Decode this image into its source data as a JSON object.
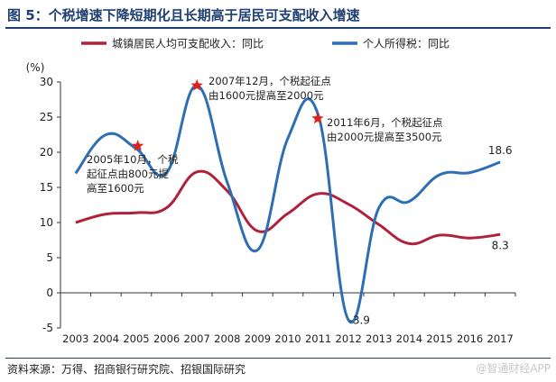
{
  "figure": {
    "title": "图 5：个税增速下降短期化且长期高于居民可支配收入增速",
    "source": "资料来源：万得、招商银行研究院、招银国际研究",
    "watermark": "@智通财经APP"
  },
  "colors": {
    "income_series": "#b0213b",
    "tax_series": "#2e6fb3",
    "marker": "#e2211c",
    "title": "#1f3f73"
  },
  "chart_data": {
    "type": "line",
    "ylabel": "(%)",
    "ylim": [
      -5,
      30
    ],
    "yticks": [
      -5,
      0,
      5,
      10,
      15,
      20,
      25,
      30
    ],
    "categories": [
      "2003",
      "2004",
      "2005",
      "2006",
      "2007",
      "2008",
      "2009",
      "2010",
      "2011",
      "2012",
      "2013",
      "2014",
      "2015",
      "2016",
      "2017"
    ],
    "series": [
      {
        "name": "城镇居民人均可支配收入：同比",
        "values": [
          10.0,
          11.2,
          11.4,
          12.1,
          17.2,
          14.5,
          8.8,
          11.3,
          14.1,
          12.6,
          9.7,
          7.0,
          8.2,
          7.8,
          8.3
        ]
      },
      {
        "name": "个人所得税：同比",
        "values": [
          17.0,
          22.5,
          20.5,
          17.1,
          29.5,
          15.7,
          6.1,
          22.0,
          25.3,
          -3.9,
          12.1,
          13.0,
          16.8,
          17.1,
          18.6
        ]
      }
    ],
    "end_labels": [
      {
        "series": 1,
        "index": 14,
        "text": "18.6"
      },
      {
        "series": 0,
        "index": 14,
        "text": "8.3"
      },
      {
        "series": 1,
        "index": 9,
        "text": "-3.9"
      }
    ],
    "annotations": [
      {
        "x_pos": 2.05,
        "y": 20.9,
        "lines": [
          "2005年10月，个税",
          "起征点由800元提",
          "高至1600元"
        ]
      },
      {
        "x_pos": 4.0,
        "y": 29.5,
        "lines": [
          "2007年12月，个税起征点",
          "由1600元提高至2000元"
        ]
      },
      {
        "x_pos": 7.98,
        "y": 24.8,
        "lines": [
          "2011年6月，个税起征点",
          "由2000元提高至3500元"
        ]
      }
    ]
  }
}
